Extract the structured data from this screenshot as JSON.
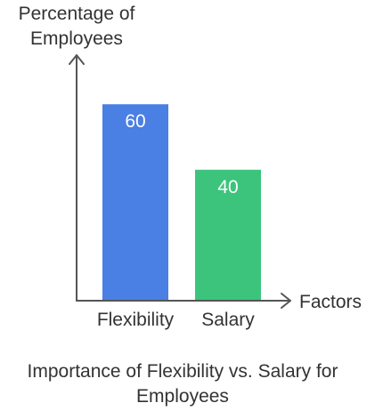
{
  "chart_data": {
    "type": "bar",
    "title": "Importance of Flexibility vs. Salary for Employees",
    "ylabel_lines": [
      "Percentage of",
      "Employees"
    ],
    "xlabel": "Factors",
    "categories": [
      "Flexibility",
      "Salary"
    ],
    "values": [
      60,
      40
    ],
    "bar_colors": [
      "#4a7fe3",
      "#3cc47c"
    ],
    "ylim": [
      0,
      75
    ],
    "grid": false,
    "legend": "none"
  }
}
